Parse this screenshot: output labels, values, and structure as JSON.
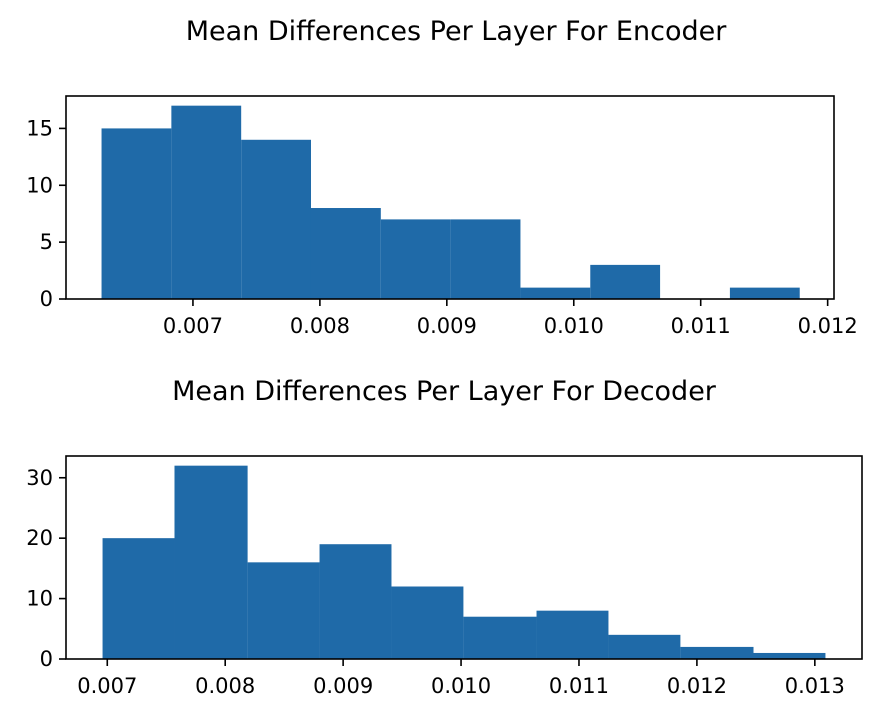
{
  "chart_data": [
    {
      "type": "bar",
      "title": "Mean Differences Per Layer For Encoder",
      "xlabel": "",
      "ylabel": "",
      "bin_edges": [
        0.00628,
        0.00683,
        0.00738,
        0.00793,
        0.00848,
        0.00903,
        0.00958,
        0.01013,
        0.01068,
        0.01123,
        0.01178
      ],
      "values": [
        15,
        17,
        14,
        8,
        7,
        7,
        1,
        3,
        0,
        1
      ],
      "xlim": [
        0.006,
        0.01205
      ],
      "ylim": [
        0,
        17.85
      ],
      "xticks": [
        0.007,
        0.008,
        0.009,
        0.01,
        0.011,
        0.012
      ],
      "xtick_labels": [
        "0.007",
        "0.008",
        "0.009",
        "0.010",
        "0.011",
        "0.012"
      ],
      "yticks": [
        0,
        5,
        10,
        15
      ],
      "ytick_labels": [
        "0",
        "5",
        "10",
        "15"
      ],
      "bar_color": "#1f6aa8",
      "grid": false
    },
    {
      "type": "bar",
      "title": "Mean Differences Per Layer For Decoder",
      "xlabel": "",
      "ylabel": "",
      "bin_edges": [
        0.00696,
        0.00757,
        0.00819,
        0.0088,
        0.00941,
        0.01002,
        0.01064,
        0.01125,
        0.01186,
        0.01248,
        0.01309
      ],
      "values": [
        20,
        32,
        16,
        19,
        12,
        7,
        8,
        4,
        2,
        1
      ],
      "xlim": [
        0.00665,
        0.0134
      ],
      "ylim": [
        0,
        33.6
      ],
      "xticks": [
        0.007,
        0.008,
        0.009,
        0.01,
        0.011,
        0.012,
        0.013
      ],
      "xtick_labels": [
        "0.007",
        "0.008",
        "0.009",
        "0.010",
        "0.011",
        "0.012",
        "0.013"
      ],
      "yticks": [
        0,
        10,
        20,
        30
      ],
      "ytick_labels": [
        "0",
        "10",
        "20",
        "30"
      ],
      "bar_color": "#1f6aa8",
      "grid": false
    }
  ]
}
